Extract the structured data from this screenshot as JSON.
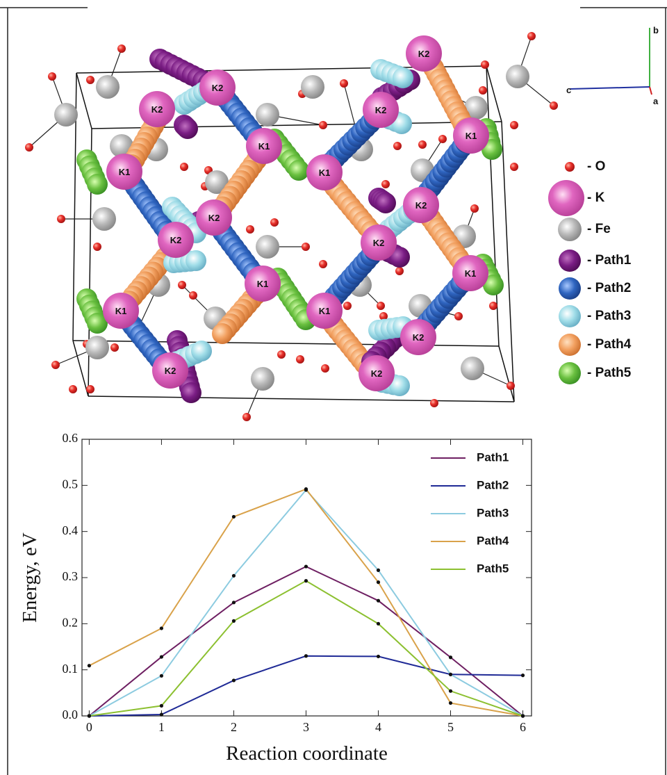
{
  "structure": {
    "atom_labels": [
      "K2",
      "K2",
      "K2",
      "K2",
      "K2",
      "K2",
      "K2",
      "K2",
      "K2",
      "K2",
      "K2",
      "K1",
      "K1",
      "K1",
      "K1",
      "K1",
      "K1",
      "K1",
      "K1"
    ],
    "legend": [
      "- O",
      "- K",
      "- Fe",
      "- Path1",
      "- Path2",
      "- Path3",
      "- Path4",
      "- Path5"
    ],
    "axes": [
      "b",
      "c",
      "a"
    ]
  },
  "chart_data": {
    "type": "line",
    "x": [
      0,
      1,
      2,
      3,
      4,
      5,
      6
    ],
    "series": [
      {
        "name": "Path1",
        "color": "#6e1f62",
        "values": [
          0,
          0.128,
          0.246,
          0.324,
          0.25,
          0.127,
          0
        ]
      },
      {
        "name": "Path2",
        "color": "#1f2a96",
        "values": [
          0,
          0.003,
          0.077,
          0.13,
          0.129,
          0.09,
          0.088
        ]
      },
      {
        "name": "Path3",
        "color": "#8ccbe0",
        "values": [
          0,
          0.087,
          0.304,
          0.49,
          0.316,
          0.09,
          0
        ]
      },
      {
        "name": "Path4",
        "color": "#d9a24a",
        "values": [
          0.109,
          0.19,
          0.432,
          0.492,
          0.29,
          0.028,
          0
        ]
      },
      {
        "name": "Path5",
        "color": "#8cc030",
        "values": [
          0,
          0.022,
          0.206,
          0.293,
          0.2,
          0.054,
          0
        ]
      }
    ],
    "xlabel": "Reaction coordinate",
    "ylabel": "Energy, eV",
    "xlim": [
      -0.1,
      6.12
    ],
    "ylim": [
      0,
      0.6
    ],
    "xticks": [
      0,
      1,
      2,
      3,
      4,
      5,
      6
    ],
    "yticks": [
      {
        "value": 0,
        "label": "0.0"
      },
      0.1,
      0.2,
      0.3,
      0.4,
      0.5,
      0.6
    ],
    "legend": "upper right"
  }
}
